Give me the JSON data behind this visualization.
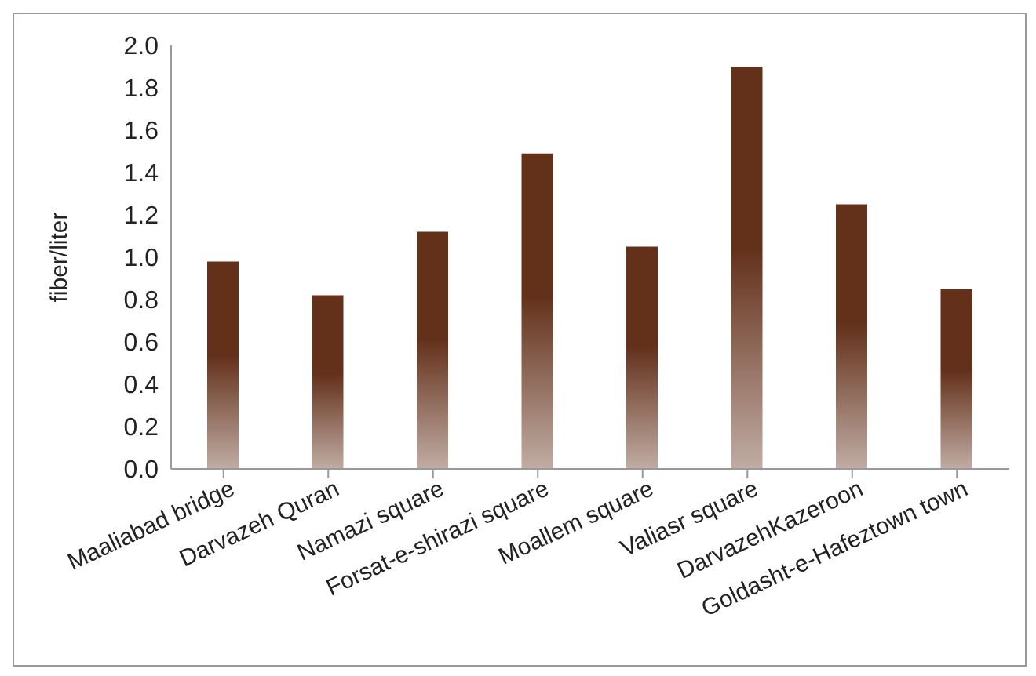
{
  "chart_data": {
    "type": "bar",
    "ylabel": "fiber/liter",
    "categories": [
      "Maaliabad bridge",
      "Darvazeh Quran",
      "Namazi square",
      "Forsat-e-shirazi square",
      "Moallem square",
      "Valiasr square",
      "DarvazehKazeroon",
      "Goldasht-e-Hafeztown town"
    ],
    "values": [
      0.98,
      0.82,
      1.12,
      1.49,
      1.05,
      1.9,
      1.25,
      0.85
    ],
    "color": "#63301a",
    "ylim": [
      0,
      2
    ],
    "yticks": [
      {
        "value": 0,
        "label": "0.0"
      },
      0.2,
      0.4,
      0.6,
      0.8,
      {
        "value": 1,
        "label": "1.0"
      },
      1.2,
      1.4,
      1.6,
      1.8,
      {
        "value": 2,
        "label": "2.0"
      }
    ],
    "grid": false
  }
}
